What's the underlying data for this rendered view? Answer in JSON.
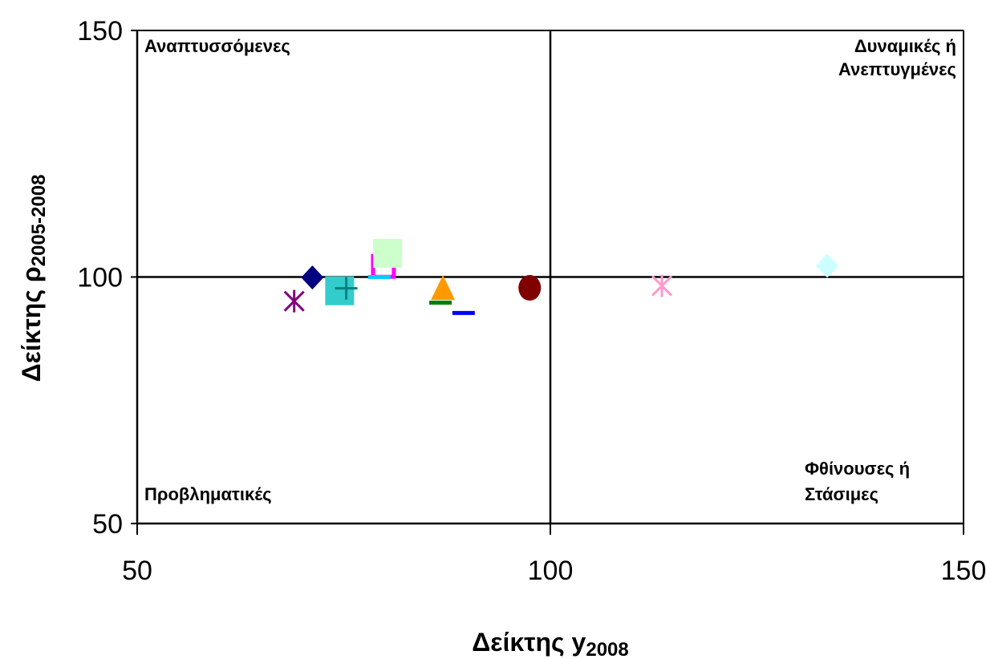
{
  "chart_data": {
    "type": "scatter",
    "xlabel": "Δείκτης y",
    "xlabel_sub": "2008",
    "ylabel": "Δείκτης ρ",
    "ylabel_sub": "2005-2008",
    "xlim": [
      50,
      150
    ],
    "ylim": [
      50,
      150
    ],
    "x_ticks": [
      "50",
      "100",
      "150"
    ],
    "y_ticks": [
      "50",
      "100",
      "150"
    ],
    "reference_lines": {
      "x": 100,
      "y": 100
    },
    "quadrant_labels": {
      "top_left": [
        "Αναπτυσσόμενες"
      ],
      "top_right": [
        "Δυναμικές ή",
        "Ανεπτυγμένες"
      ],
      "bottom_left": [
        "Προβληματικές"
      ],
      "bottom_right": [
        "Φθίνουσες ή",
        "Στάσιμες"
      ]
    },
    "points": [
      {
        "x": 69.0,
        "y": 95.1,
        "marker": "asterisk",
        "color": "#800080"
      },
      {
        "x": 71.2,
        "y": 99.9,
        "marker": "diamond",
        "color": "#000080"
      },
      {
        "x": 74.5,
        "y": 97.2,
        "marker": "square",
        "color": "#33CCCC"
      },
      {
        "x": 75.3,
        "y": 97.7,
        "marker": "plus",
        "color": "#008080"
      },
      {
        "x": 79.8,
        "y": 101.5,
        "marker": "square-open",
        "color": "#FF00FF"
      },
      {
        "x": 79.3,
        "y": 100.0,
        "marker": "dash",
        "color": "#00CCFF"
      },
      {
        "x": 80.3,
        "y": 104.8,
        "marker": "square",
        "color": "#CCFFCC"
      },
      {
        "x": 87.0,
        "y": 97.3,
        "marker": "triangle",
        "color": "#FF9900"
      },
      {
        "x": 86.7,
        "y": 94.8,
        "marker": "dash",
        "color": "#008000"
      },
      {
        "x": 89.5,
        "y": 92.7,
        "marker": "dash",
        "color": "#0000FF"
      },
      {
        "x": 97.5,
        "y": 97.8,
        "marker": "circle",
        "color": "#800000"
      },
      {
        "x": 113.5,
        "y": 98.2,
        "marker": "asterisk",
        "color": "#FF99CC"
      },
      {
        "x": 133.5,
        "y": 102.3,
        "marker": "diamond",
        "color": "#CCFFFF"
      }
    ]
  }
}
